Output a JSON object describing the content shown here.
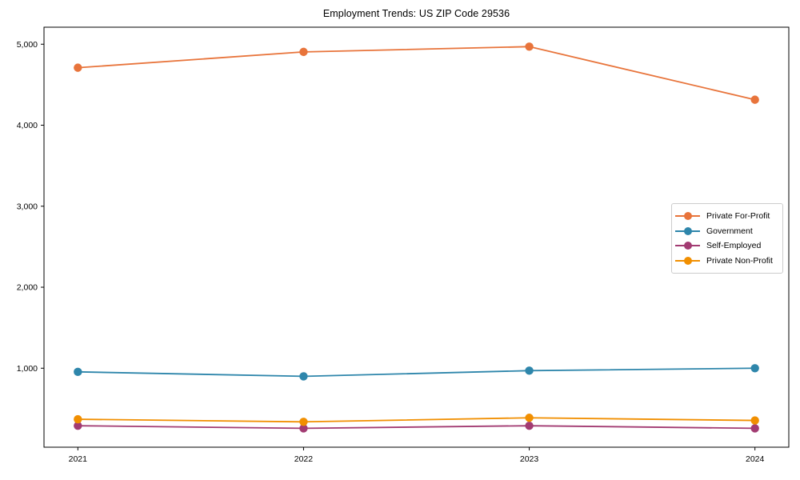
{
  "chart_data": {
    "type": "line",
    "title": "Employment Trends: US ZIP Code 29536",
    "x": [
      2021,
      2022,
      2023,
      2024
    ],
    "x_labels": [
      "2021",
      "2022",
      "2023",
      "2024"
    ],
    "series": [
      {
        "name": "Private For-Profit",
        "color": "#E8743B",
        "values": [
          4710,
          4905,
          4970,
          4315
        ]
      },
      {
        "name": "Government",
        "color": "#2E86AB",
        "values": [
          955,
          900,
          970,
          1000
        ]
      },
      {
        "name": "Self-Employed",
        "color": "#A23B72",
        "values": [
          290,
          258,
          290,
          258
        ]
      },
      {
        "name": "Private Non-Profit",
        "color": "#F18F01",
        "values": [
          370,
          338,
          388,
          355
        ]
      }
    ],
    "xlim": [
      2020.85,
      2024.15
    ],
    "ylim": [
      25,
      5210
    ],
    "yticks": [
      1000,
      2000,
      3000,
      4000,
      5000
    ],
    "ytick_labels": [
      "1,000",
      "2,000",
      "3,000",
      "4,000",
      "5,000"
    ],
    "xlabel": "",
    "ylabel": "",
    "grid": false,
    "legend_position": "center right",
    "marker": "circle",
    "axis_color": "#000000",
    "background_color": "#ffffff"
  }
}
